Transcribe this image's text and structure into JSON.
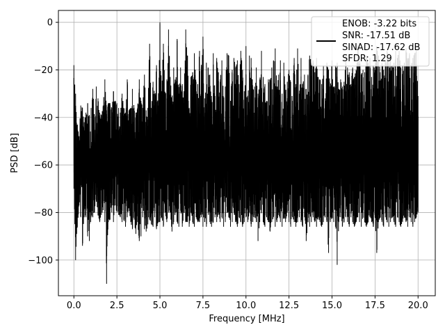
{
  "chart_data": {
    "type": "line",
    "xlabel": "Frequency [MHz]",
    "ylabel": "PSD [dB]",
    "xlim": [
      -0.9,
      21.0
    ],
    "ylim": [
      -115,
      5
    ],
    "xticks": [
      0.0,
      2.5,
      5.0,
      7.5,
      10.0,
      12.5,
      15.0,
      17.5,
      20.0
    ],
    "xtick_labels": [
      "0.0",
      "2.5",
      "5.0",
      "7.5",
      "10.0",
      "12.5",
      "15.0",
      "17.5",
      "20.0"
    ],
    "yticks": [
      0,
      -20,
      -40,
      -60,
      -80,
      -100
    ],
    "ytick_labels": [
      "0",
      "−20",
      "−40",
      "−60",
      "−80",
      "−100"
    ],
    "grid": true,
    "legend_position": "top-right",
    "legend_entries": [
      "ENOB: -3.22 bits",
      "SNR: -17.51 dB",
      "SINAD: -17.62 dB",
      "SFDR: 1.29"
    ],
    "line_color": "#000000",
    "series": [
      {
        "x": [
          0.0,
          0.1,
          0.2,
          0.3,
          0.4,
          0.5,
          0.6,
          0.7,
          0.8,
          0.9,
          1.0,
          1.1,
          1.2,
          1.3,
          1.4,
          1.5,
          1.6,
          1.7,
          1.8,
          1.9,
          2.0,
          2.1,
          2.2,
          2.3,
          2.4,
          2.5,
          2.6,
          2.7,
          2.8,
          2.9,
          3.0,
          3.1,
          3.2,
          3.3,
          3.4,
          3.5,
          3.6,
          3.7,
          3.8,
          3.9,
          4.0,
          4.1,
          4.2,
          4.3,
          4.4,
          4.5,
          4.6,
          4.7,
          4.8,
          4.9,
          5.0,
          5.1,
          5.2,
          5.3,
          5.4,
          5.5,
          5.6,
          5.7,
          5.8,
          5.9,
          6.0,
          6.1,
          6.2,
          6.3,
          6.4,
          6.5,
          6.6,
          6.7,
          6.8,
          6.9,
          7.0,
          7.1,
          7.2,
          7.3,
          7.4,
          7.5,
          7.6,
          7.7,
          7.8,
          7.9,
          8.0,
          8.1,
          8.2,
          8.3,
          8.4,
          8.5,
          8.6,
          8.7,
          8.8,
          8.9,
          9.0,
          9.1,
          9.2,
          9.3,
          9.4,
          9.5,
          9.6,
          9.7,
          9.8,
          9.9,
          10.0,
          10.1,
          10.2,
          10.3,
          10.4,
          10.5,
          10.6,
          10.7,
          10.8,
          10.9,
          11.0,
          11.1,
          11.2,
          11.3,
          11.4,
          11.5,
          11.6,
          11.7,
          11.8,
          11.9,
          12.0,
          12.1,
          12.2,
          12.3,
          12.4,
          12.5,
          12.6,
          12.7,
          12.8,
          12.9,
          13.0,
          13.1,
          13.2,
          13.3,
          13.4,
          13.5,
          13.6,
          13.7,
          13.8,
          13.9,
          14.0,
          14.1,
          14.2,
          14.3,
          14.4,
          14.5,
          14.6,
          14.7,
          14.8,
          14.9,
          15.0,
          15.1,
          15.2,
          15.3,
          15.4,
          15.5,
          15.6,
          15.7,
          15.8,
          15.9,
          16.0,
          16.1,
          16.2,
          16.3,
          16.4,
          16.5,
          16.6,
          16.7,
          16.8,
          16.9,
          17.0,
          17.1,
          17.2,
          17.3,
          17.4,
          17.5,
          17.6,
          17.7,
          17.8,
          17.9,
          18.0,
          18.1,
          18.2,
          18.3,
          18.4,
          18.5,
          18.6,
          18.7,
          18.8,
          18.9,
          19.0,
          19.1,
          19.2,
          19.3,
          19.4,
          19.5,
          19.6,
          19.7,
          19.8,
          19.9,
          20.0
        ],
        "max_db": [
          -18,
          -30,
          -43,
          -48,
          -35,
          -36,
          -42,
          -38,
          -34,
          -39,
          -36,
          -28,
          -40,
          -27,
          -32,
          -38,
          -39,
          -35,
          -24,
          -37,
          -34,
          -34,
          -36,
          -29,
          -33,
          -34,
          -36,
          -38,
          -30,
          -36,
          -38,
          -24,
          -37,
          -36,
          -28,
          -36,
          -38,
          -36,
          -24,
          -33,
          -36,
          -22,
          -37,
          -36,
          -9,
          -36,
          -25,
          -30,
          -18,
          -35,
          0,
          -29,
          -9,
          -31,
          -24,
          -3,
          -23,
          -33,
          -19,
          -25,
          -7,
          -30,
          -19,
          -26,
          -29,
          -3,
          -14,
          -36,
          -23,
          -21,
          -13,
          -25,
          -26,
          -12,
          -19,
          -6,
          -32,
          -17,
          -19,
          -22,
          -31,
          -13,
          -31,
          -15,
          -21,
          -25,
          -16,
          -32,
          -27,
          -13,
          -14,
          -33,
          -20,
          -15,
          -19,
          -16,
          -26,
          -12,
          -20,
          -29,
          -10,
          -31,
          -14,
          -15,
          -28,
          -27,
          -19,
          -30,
          -24,
          -12,
          -23,
          -26,
          -33,
          -24,
          -24,
          -19,
          -16,
          -11,
          -28,
          -22,
          -16,
          -30,
          -17,
          -29,
          -25,
          -20,
          -25,
          -33,
          -15,
          -26,
          -11,
          -30,
          -15,
          -26,
          -22,
          -28,
          -22,
          -14,
          -17,
          -16,
          -21,
          -15,
          -23,
          -24,
          -26,
          -18,
          -32,
          -17,
          -20,
          -27,
          -16,
          -27,
          -18,
          -17,
          -29,
          -24,
          -27,
          -25,
          -14,
          -19,
          -21,
          -26,
          -19,
          -23,
          -20,
          -10,
          -16,
          -22,
          -20,
          -21,
          -14,
          -17,
          -15,
          -23,
          -18,
          -20,
          -10,
          -14,
          -21,
          -17,
          -20,
          -16,
          -12,
          -13,
          -16,
          -18,
          -17,
          -12,
          -15,
          -12,
          -19,
          -18,
          -17,
          -11,
          -16,
          -13,
          -18,
          -15,
          -13,
          -12,
          -31
        ],
        "min_db": [
          -70,
          -100,
          -86,
          -77,
          -82,
          -94,
          -82,
          -82,
          -90,
          -92,
          -82,
          -82,
          -80,
          -75,
          -81,
          -84,
          -81,
          -79,
          -84,
          -110,
          -84,
          -83,
          -80,
          -84,
          -77,
          -80,
          -81,
          -82,
          -84,
          -83,
          -86,
          -82,
          -78,
          -84,
          -87,
          -83,
          -89,
          -84,
          -92,
          -90,
          -82,
          -87,
          -88,
          -85,
          -83,
          -85,
          -86,
          -82,
          -87,
          -84,
          -84,
          -82,
          -86,
          -80,
          -84,
          -80,
          -80,
          -88,
          -84,
          -80,
          -84,
          -86,
          -79,
          -86,
          -80,
          -84,
          -84,
          -86,
          -80,
          -84,
          -86,
          -82,
          -84,
          -84,
          -82,
          -86,
          -84,
          -86,
          -80,
          -84,
          -86,
          -84,
          -82,
          -84,
          -80,
          -84,
          -82,
          -86,
          -84,
          -80,
          -82,
          -86,
          -84,
          -80,
          -84,
          -86,
          -82,
          -84,
          -86,
          -84,
          -82,
          -84,
          -80,
          -86,
          -84,
          -82,
          -84,
          -92,
          -84,
          -80,
          -84,
          -86,
          -82,
          -84,
          -88,
          -84,
          -82,
          -86,
          -84,
          -80,
          -84,
          -86,
          -82,
          -84,
          -80,
          -84,
          -86,
          -82,
          -84,
          -86,
          -84,
          -82,
          -84,
          -86,
          -82,
          -92,
          -84,
          -86,
          -84,
          -82,
          -84,
          -86,
          -82,
          -84,
          -86,
          -84,
          -82,
          -84,
          -97,
          -84,
          -82,
          -84,
          -86,
          -102,
          -84,
          -82,
          -86,
          -84,
          -82,
          -84,
          -86,
          -82,
          -84,
          -86,
          -84,
          -82,
          -84,
          -86,
          -82,
          -84,
          -86,
          -84,
          -82,
          -84,
          -86,
          -82,
          -97,
          -84,
          -82,
          -84,
          -86,
          -82,
          -84,
          -86,
          -84,
          -82,
          -84,
          -86,
          -82,
          -84,
          -86,
          -84,
          -82,
          -84,
          -86,
          -82,
          -84,
          -86,
          -84,
          -82,
          -80
        ]
      }
    ]
  }
}
